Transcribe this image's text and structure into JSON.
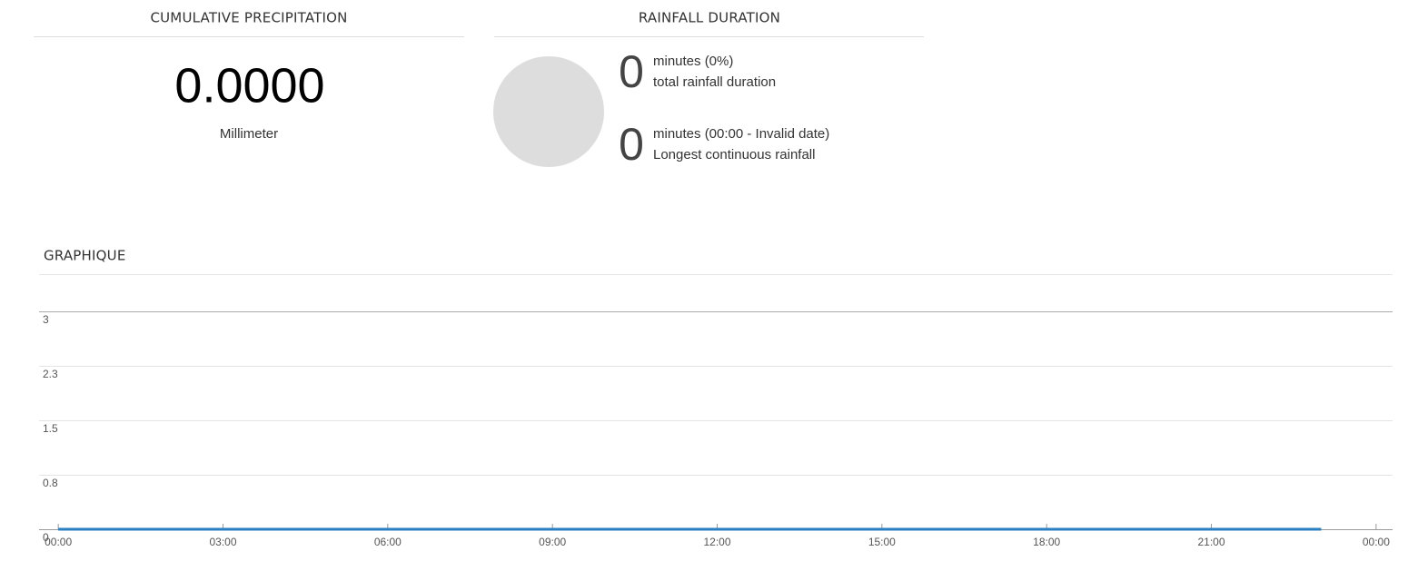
{
  "precipitation": {
    "title": "CUMULATIVE PRECIPITATION",
    "value": "0.0000",
    "unit": "Millimeter"
  },
  "duration": {
    "title": "RAINFALL DURATION",
    "total": {
      "value": "0",
      "text": "minutes (0%)",
      "label": "total rainfall duration"
    },
    "longest": {
      "value": "0",
      "text": "minutes (00:00 - Invalid date)",
      "label": "Longest continuous rainfall"
    }
  },
  "chart_data": {
    "type": "line",
    "title": "GRAPHIQUE",
    "x": [
      0,
      1,
      2,
      3,
      4,
      5,
      6,
      7,
      8,
      9,
      10,
      11,
      12,
      13,
      14,
      15,
      16,
      17,
      18,
      19,
      20,
      21,
      22,
      23
    ],
    "series": [
      {
        "color": "#2a7fc0",
        "values": [
          0,
          0,
          0,
          0,
          0,
          0,
          0,
          0,
          0,
          0,
          0,
          0,
          0,
          0,
          0,
          0,
          0,
          0,
          0,
          0,
          0,
          0,
          0,
          0
        ]
      }
    ],
    "xlim": [
      -0.35,
      24.3
    ],
    "xticks": [
      {
        "value": 0,
        "label": "00:00"
      },
      {
        "value": 3,
        "label": "03:00"
      },
      {
        "value": 6,
        "label": "06:00"
      },
      {
        "value": 9,
        "label": "09:00"
      },
      {
        "value": 12,
        "label": "12:00"
      },
      {
        "value": 15,
        "label": "15:00"
      },
      {
        "value": 18,
        "label": "18:00"
      },
      {
        "value": 21,
        "label": "21:00"
      },
      {
        "value": 24,
        "label": "00:00"
      }
    ],
    "ylim": [
      0,
      3
    ],
    "yticks": [
      0,
      {
        "value": 0.75,
        "label": "0.8"
      },
      1.5,
      {
        "value": 2.25,
        "label": "2.3"
      },
      3
    ],
    "grid": true
  }
}
